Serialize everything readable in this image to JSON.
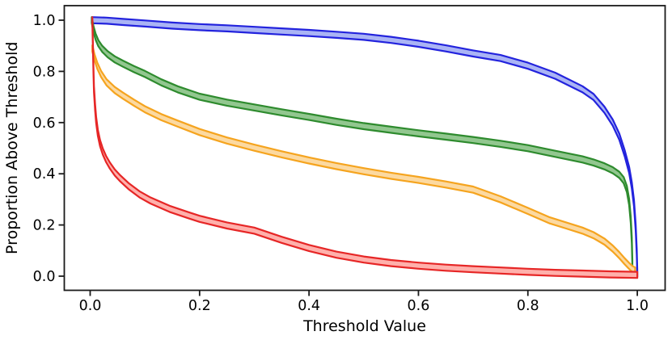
{
  "chart_data": {
    "type": "line",
    "title": "",
    "xlabel": "Threshold Value",
    "ylabel": "Proportion Above Threshold",
    "x_ticks": [
      "0.0",
      "0.2",
      "0.4",
      "0.6",
      "0.8",
      "1.0"
    ],
    "x_tick_values": [
      0.0,
      0.2,
      0.4,
      0.6,
      0.8,
      1.0
    ],
    "y_ticks": [
      "0.0",
      "0.2",
      "0.4",
      "0.6",
      "0.8",
      "1.0"
    ],
    "y_tick_values": [
      0.0,
      0.2,
      0.4,
      0.6,
      0.8,
      1.0
    ],
    "xlim": [
      -0.047,
      1.052
    ],
    "ylim": [
      -0.054,
      1.057
    ],
    "grid": false,
    "legend": "none",
    "band_half_width": 0.012,
    "spine_color": "#1a1a1a",
    "series": [
      {
        "name": "blue",
        "edge_color": "#2323dd",
        "fill_color": "#aab4f5",
        "points": [
          [
            0.003,
            1.0
          ],
          [
            0.03,
            0.998
          ],
          [
            0.06,
            0.993
          ],
          [
            0.1,
            0.987
          ],
          [
            0.15,
            0.979
          ],
          [
            0.2,
            0.973
          ],
          [
            0.25,
            0.968
          ],
          [
            0.3,
            0.962
          ],
          [
            0.35,
            0.956
          ],
          [
            0.4,
            0.95
          ],
          [
            0.45,
            0.943
          ],
          [
            0.5,
            0.935
          ],
          [
            0.55,
            0.923
          ],
          [
            0.6,
            0.908
          ],
          [
            0.65,
            0.89
          ],
          [
            0.7,
            0.87
          ],
          [
            0.75,
            0.852
          ],
          [
            0.8,
            0.822
          ],
          [
            0.85,
            0.783
          ],
          [
            0.9,
            0.73
          ],
          [
            0.92,
            0.7
          ],
          [
            0.94,
            0.65
          ],
          [
            0.955,
            0.6
          ],
          [
            0.967,
            0.545
          ],
          [
            0.977,
            0.48
          ],
          [
            0.985,
            0.415
          ],
          [
            0.99,
            0.355
          ],
          [
            0.994,
            0.285
          ],
          [
            0.997,
            0.19
          ],
          [
            0.999,
            0.095
          ],
          [
            1.0,
            0.01
          ]
        ]
      },
      {
        "name": "green",
        "edge_color": "#2e8b2e",
        "fill_color": "#92c78f",
        "points": [
          [
            0.003,
            1.0
          ],
          [
            0.006,
            0.965
          ],
          [
            0.01,
            0.935
          ],
          [
            0.015,
            0.91
          ],
          [
            0.022,
            0.888
          ],
          [
            0.032,
            0.867
          ],
          [
            0.045,
            0.847
          ],
          [
            0.06,
            0.83
          ],
          [
            0.08,
            0.809
          ],
          [
            0.1,
            0.79
          ],
          [
            0.13,
            0.757
          ],
          [
            0.16,
            0.73
          ],
          [
            0.2,
            0.701
          ],
          [
            0.25,
            0.678
          ],
          [
            0.3,
            0.659
          ],
          [
            0.35,
            0.64
          ],
          [
            0.4,
            0.622
          ],
          [
            0.45,
            0.603
          ],
          [
            0.5,
            0.586
          ],
          [
            0.55,
            0.572
          ],
          [
            0.6,
            0.558
          ],
          [
            0.65,
            0.545
          ],
          [
            0.7,
            0.532
          ],
          [
            0.75,
            0.517
          ],
          [
            0.8,
            0.5
          ],
          [
            0.85,
            0.478
          ],
          [
            0.9,
            0.456
          ],
          [
            0.92,
            0.444
          ],
          [
            0.94,
            0.429
          ],
          [
            0.955,
            0.414
          ],
          [
            0.967,
            0.396
          ],
          [
            0.975,
            0.375
          ],
          [
            0.981,
            0.34
          ],
          [
            0.985,
            0.29
          ],
          [
            0.988,
            0.22
          ],
          [
            0.99,
            0.14
          ],
          [
            0.991,
            0.05
          ]
        ]
      },
      {
        "name": "orange",
        "edge_color": "#f5a41f",
        "fill_color": "#fcd9a0",
        "points": [
          [
            0.004,
            0.89
          ],
          [
            0.008,
            0.855
          ],
          [
            0.013,
            0.822
          ],
          [
            0.02,
            0.79
          ],
          [
            0.03,
            0.757
          ],
          [
            0.045,
            0.727
          ],
          [
            0.06,
            0.705
          ],
          [
            0.08,
            0.678
          ],
          [
            0.1,
            0.652
          ],
          [
            0.13,
            0.621
          ],
          [
            0.16,
            0.596
          ],
          [
            0.2,
            0.563
          ],
          [
            0.25,
            0.53
          ],
          [
            0.3,
            0.502
          ],
          [
            0.35,
            0.476
          ],
          [
            0.4,
            0.452
          ],
          [
            0.45,
            0.43
          ],
          [
            0.5,
            0.41
          ],
          [
            0.55,
            0.392
          ],
          [
            0.6,
            0.376
          ],
          [
            0.65,
            0.358
          ],
          [
            0.7,
            0.338
          ],
          [
            0.75,
            0.3
          ],
          [
            0.8,
            0.255
          ],
          [
            0.84,
            0.218
          ],
          [
            0.87,
            0.198
          ],
          [
            0.9,
            0.178
          ],
          [
            0.92,
            0.16
          ],
          [
            0.94,
            0.135
          ],
          [
            0.955,
            0.108
          ],
          [
            0.967,
            0.082
          ],
          [
            0.977,
            0.058
          ],
          [
            0.985,
            0.04
          ],
          [
            0.991,
            0.028
          ],
          [
            0.996,
            0.022
          ]
        ]
      },
      {
        "name": "red",
        "edge_color": "#e62626",
        "fill_color": "#ffb0ab",
        "points": [
          [
            0.004,
            1.0
          ],
          [
            0.005,
            0.9
          ],
          [
            0.006,
            0.8
          ],
          [
            0.007,
            0.73
          ],
          [
            0.009,
            0.66
          ],
          [
            0.011,
            0.61
          ],
          [
            0.014,
            0.56
          ],
          [
            0.018,
            0.52
          ],
          [
            0.023,
            0.487
          ],
          [
            0.029,
            0.458
          ],
          [
            0.036,
            0.432
          ],
          [
            0.045,
            0.405
          ],
          [
            0.055,
            0.382
          ],
          [
            0.07,
            0.352
          ],
          [
            0.09,
            0.32
          ],
          [
            0.11,
            0.296
          ],
          [
            0.145,
            0.263
          ],
          [
            0.18,
            0.238
          ],
          [
            0.2,
            0.224
          ],
          [
            0.25,
            0.198
          ],
          [
            0.3,
            0.178
          ],
          [
            0.35,
            0.142
          ],
          [
            0.4,
            0.11
          ],
          [
            0.45,
            0.084
          ],
          [
            0.5,
            0.065
          ],
          [
            0.55,
            0.051
          ],
          [
            0.6,
            0.041
          ],
          [
            0.65,
            0.033
          ],
          [
            0.7,
            0.027
          ],
          [
            0.75,
            0.022
          ],
          [
            0.8,
            0.017
          ],
          [
            0.85,
            0.013
          ],
          [
            0.9,
            0.01
          ],
          [
            0.95,
            0.007
          ],
          [
            1.0,
            0.005
          ]
        ]
      }
    ]
  }
}
